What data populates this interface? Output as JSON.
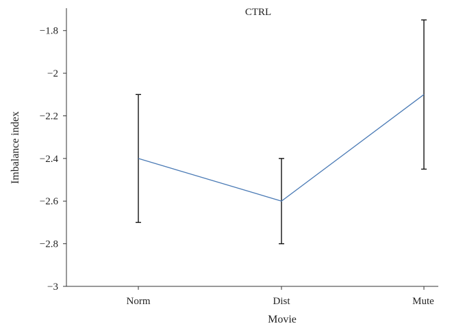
{
  "chart_data": {
    "type": "line",
    "title": "CTRL",
    "xlabel": "Movie",
    "ylabel": "Imbalance index",
    "categories": [
      "Norm",
      "Dist",
      "Mute"
    ],
    "series": [
      {
        "values": [
          -2.4,
          -2.6,
          -2.1
        ],
        "error_low": [
          -2.7,
          -2.8,
          -2.45
        ],
        "error_high": [
          -2.1,
          -2.4,
          -1.75
        ],
        "color": "#4a7ab5"
      }
    ],
    "ylim": [
      -3,
      -1.7
    ],
    "yticks": [
      -3,
      -2.8,
      -2.6,
      -2.4,
      -2.2,
      -2,
      -1.8
    ],
    "ytick_labels": [
      "−3",
      "−2.8",
      "−2.6",
      "−2.4",
      "−2.2",
      "−2",
      "−1.8"
    ],
    "grid": false,
    "legend": "none"
  }
}
